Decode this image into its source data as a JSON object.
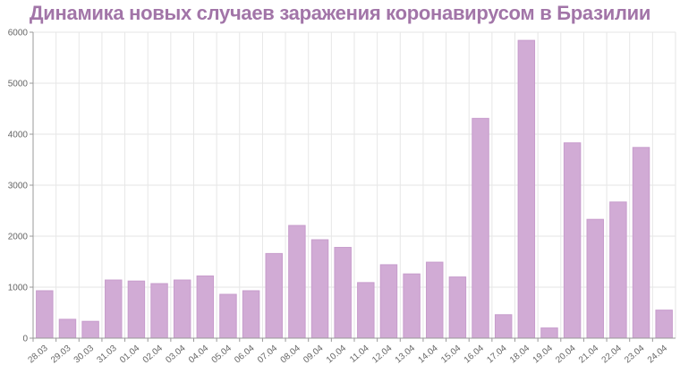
{
  "title": "Динамика новых случаев заражения коронавирусом в Бразилии",
  "colors": {
    "bar_fill": "#d1abd5",
    "bar_stroke": "#c79ccc",
    "title": "#a275a8",
    "grid": "#e6e6e6",
    "axis": "#999999",
    "tick_text": "#666666"
  },
  "chart_data": {
    "type": "bar",
    "title": "Динамика новых случаев заражения коронавирусом в Бразилии",
    "xlabel": "",
    "ylabel": "",
    "ylim": [
      0,
      6000
    ],
    "yticks": [
      0,
      1000,
      2000,
      3000,
      4000,
      5000,
      6000
    ],
    "grid": true,
    "legend": null,
    "categories": [
      "28.03",
      "29.03",
      "30.03",
      "31.03",
      "01.04",
      "02.04",
      "03.04",
      "04.04",
      "05.04",
      "06.04",
      "07.04",
      "08.04",
      "09.04",
      "10.04",
      "11.04",
      "12.04",
      "13.04",
      "14.04",
      "15.04",
      "16.04",
      "17.04",
      "18.04",
      "19.04",
      "20.04",
      "21.04",
      "22.04",
      "23.04",
      "24.04"
    ],
    "values": [
      930,
      370,
      330,
      1140,
      1120,
      1070,
      1140,
      1220,
      860,
      930,
      1660,
      2210,
      1930,
      1780,
      1090,
      1440,
      1260,
      1490,
      1200,
      4310,
      460,
      5840,
      200,
      3830,
      2330,
      2670,
      3740,
      550
    ]
  }
}
